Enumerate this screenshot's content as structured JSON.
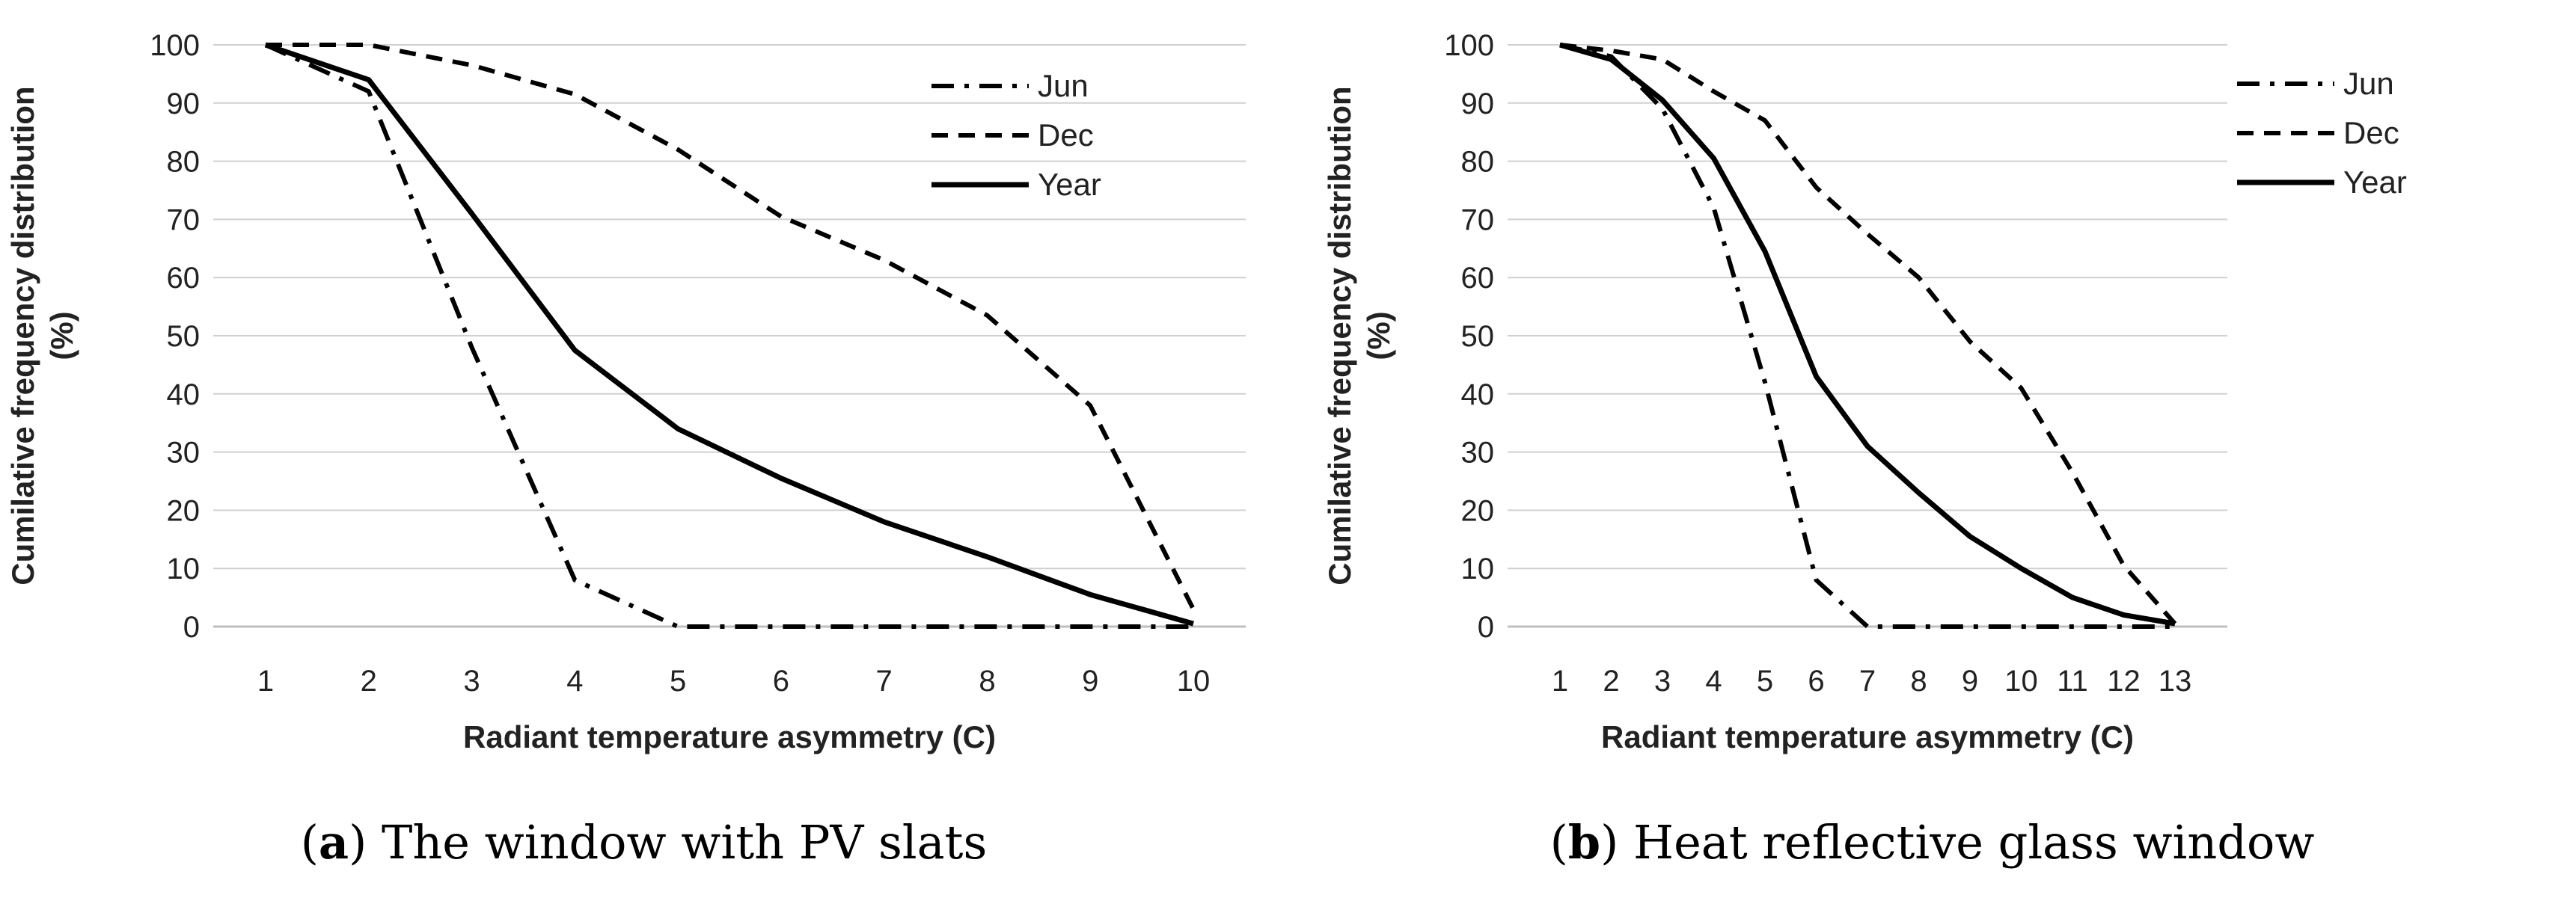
{
  "chart_data": [
    {
      "type": "line",
      "panel_label": "a",
      "caption": "The window with PV slats",
      "xlabel": "Radiant temperature asymmetry (C)",
      "ylabel": "Cumilative frequency distribution (%)",
      "ylabel_lines": [
        "Cumilative frequency distribution",
        "(%)"
      ],
      "x": [
        1,
        2,
        3,
        4,
        5,
        6,
        7,
        8,
        9,
        10
      ],
      "xlim": [
        1,
        10
      ],
      "ylim": [
        0,
        100
      ],
      "yticks": [
        0,
        10,
        20,
        30,
        40,
        50,
        60,
        70,
        80,
        90,
        100
      ],
      "grid": "horizontal",
      "legend_position": "top-right",
      "series": [
        {
          "name": "Jun",
          "style": "dash-dot",
          "values": [
            100,
            92,
            48,
            8,
            0,
            0,
            0,
            0,
            0,
            0
          ]
        },
        {
          "name": "Dec",
          "style": "dashed",
          "values": [
            100,
            100,
            96.5,
            91.5,
            82,
            70.5,
            63,
            53.5,
            38,
            3
          ]
        },
        {
          "name": "Year",
          "style": "solid",
          "values": [
            100,
            94,
            71,
            47.5,
            34,
            25.5,
            18,
            12,
            5.5,
            0.5
          ]
        }
      ]
    },
    {
      "type": "line",
      "panel_label": "b",
      "caption": "Heat reflective glass window",
      "xlabel": "Radiant temperature asymmetry (C)",
      "ylabel": "Cumilative frequency distribution (%)",
      "ylabel_lines": [
        "Cumilative frequency distribution",
        "(%)"
      ],
      "x": [
        1,
        2,
        3,
        4,
        5,
        6,
        7,
        8,
        9,
        10,
        11,
        12,
        13
      ],
      "xlim": [
        1,
        13
      ],
      "ylim": [
        0,
        100
      ],
      "yticks": [
        0,
        10,
        20,
        30,
        40,
        50,
        60,
        70,
        80,
        90,
        100
      ],
      "grid": "horizontal",
      "legend_position": "top-right",
      "series": [
        {
          "name": "Jun",
          "style": "dash-dot",
          "values": [
            100,
            98,
            89,
            72,
            42,
            8,
            0,
            0,
            0,
            0,
            0,
            0,
            0
          ]
        },
        {
          "name": "Dec",
          "style": "dashed",
          "values": [
            100,
            99,
            97.5,
            92,
            87,
            75.5,
            67.5,
            60,
            49,
            41,
            26.5,
            10.5,
            0.5
          ]
        },
        {
          "name": "Year",
          "style": "solid",
          "values": [
            100,
            97.5,
            90.5,
            80.5,
            64.5,
            43,
            31,
            23,
            15.5,
            10,
            5,
            2,
            0.5
          ]
        }
      ]
    }
  ]
}
